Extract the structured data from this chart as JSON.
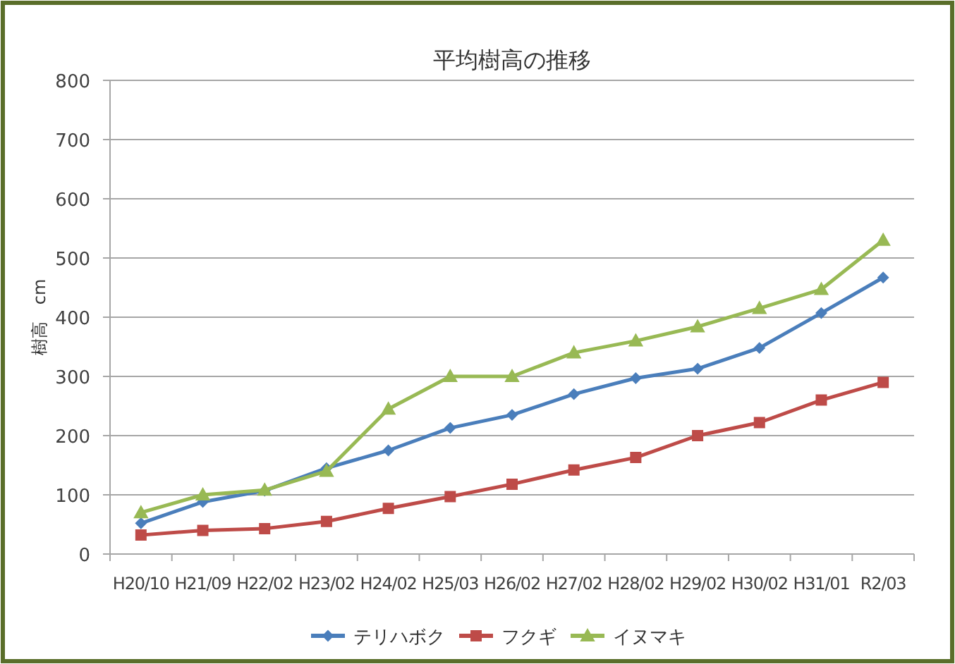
{
  "chart_data": {
    "type": "line",
    "title": "平均樹高の推移",
    "ylabel": "樹高　cm",
    "categories": [
      "H20/10",
      "H21/09",
      "H22/02",
      "H23/02",
      "H24/02",
      "H25/03",
      "H26/02",
      "H27/02",
      "H28/02",
      "H29/02",
      "H30/02",
      "H31/01",
      "R2/03"
    ],
    "series": [
      {
        "name": "テリハボク",
        "color": "#4a7ebb",
        "marker": "diamond",
        "values": [
          52,
          88,
          107,
          145,
          175,
          213,
          235,
          270,
          297,
          313,
          348,
          407,
          467
        ]
      },
      {
        "name": "フクギ",
        "color": "#be4b48",
        "marker": "square",
        "values": [
          32,
          40,
          43,
          55,
          77,
          97,
          118,
          142,
          163,
          200,
          222,
          260,
          290
        ]
      },
      {
        "name": "イヌマキ",
        "color": "#98b954",
        "marker": "triangle",
        "values": [
          70,
          100,
          108,
          140,
          245,
          300,
          300,
          340,
          360,
          384,
          415,
          447,
          530
        ]
      }
    ],
    "ylim": [
      0,
      800
    ],
    "yticks": [
      0,
      100,
      200,
      300,
      400,
      500,
      600,
      700,
      800
    ],
    "grid": "y",
    "legend": "bottom",
    "line_style": "solid"
  }
}
